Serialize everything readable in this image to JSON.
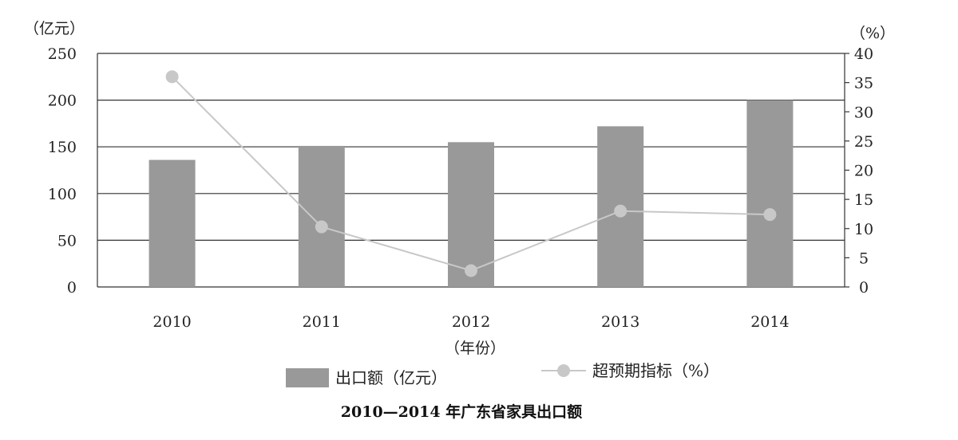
{
  "chart_data": {
    "type": "bar+line",
    "title": "2010—2014 年广东省家具出口额",
    "xlabel": "（年份）",
    "ylabel_left": "（亿元）",
    "ylabel_right": "（%）",
    "categories": [
      "2010",
      "2011",
      "2012",
      "2013",
      "2014"
    ],
    "ylim_left": [
      0,
      250
    ],
    "yticks_left": [
      0,
      50,
      100,
      150,
      200,
      250
    ],
    "ylim_right": [
      0,
      40
    ],
    "yticks_right": [
      0,
      5,
      10,
      15,
      20,
      25,
      30,
      35,
      40
    ],
    "grid": "horizontal",
    "legend_position": "bottom",
    "series": [
      {
        "name": "出口额（亿元）",
        "type": "bar",
        "axis": "left",
        "color": "#999999",
        "values": [
          136,
          151,
          155,
          172,
          200
        ]
      },
      {
        "name": "超预期指标（%）",
        "type": "line",
        "axis": "right",
        "color": "#c8c8c8",
        "values": [
          36,
          10.3,
          2.8,
          13,
          12.4
        ]
      }
    ]
  }
}
